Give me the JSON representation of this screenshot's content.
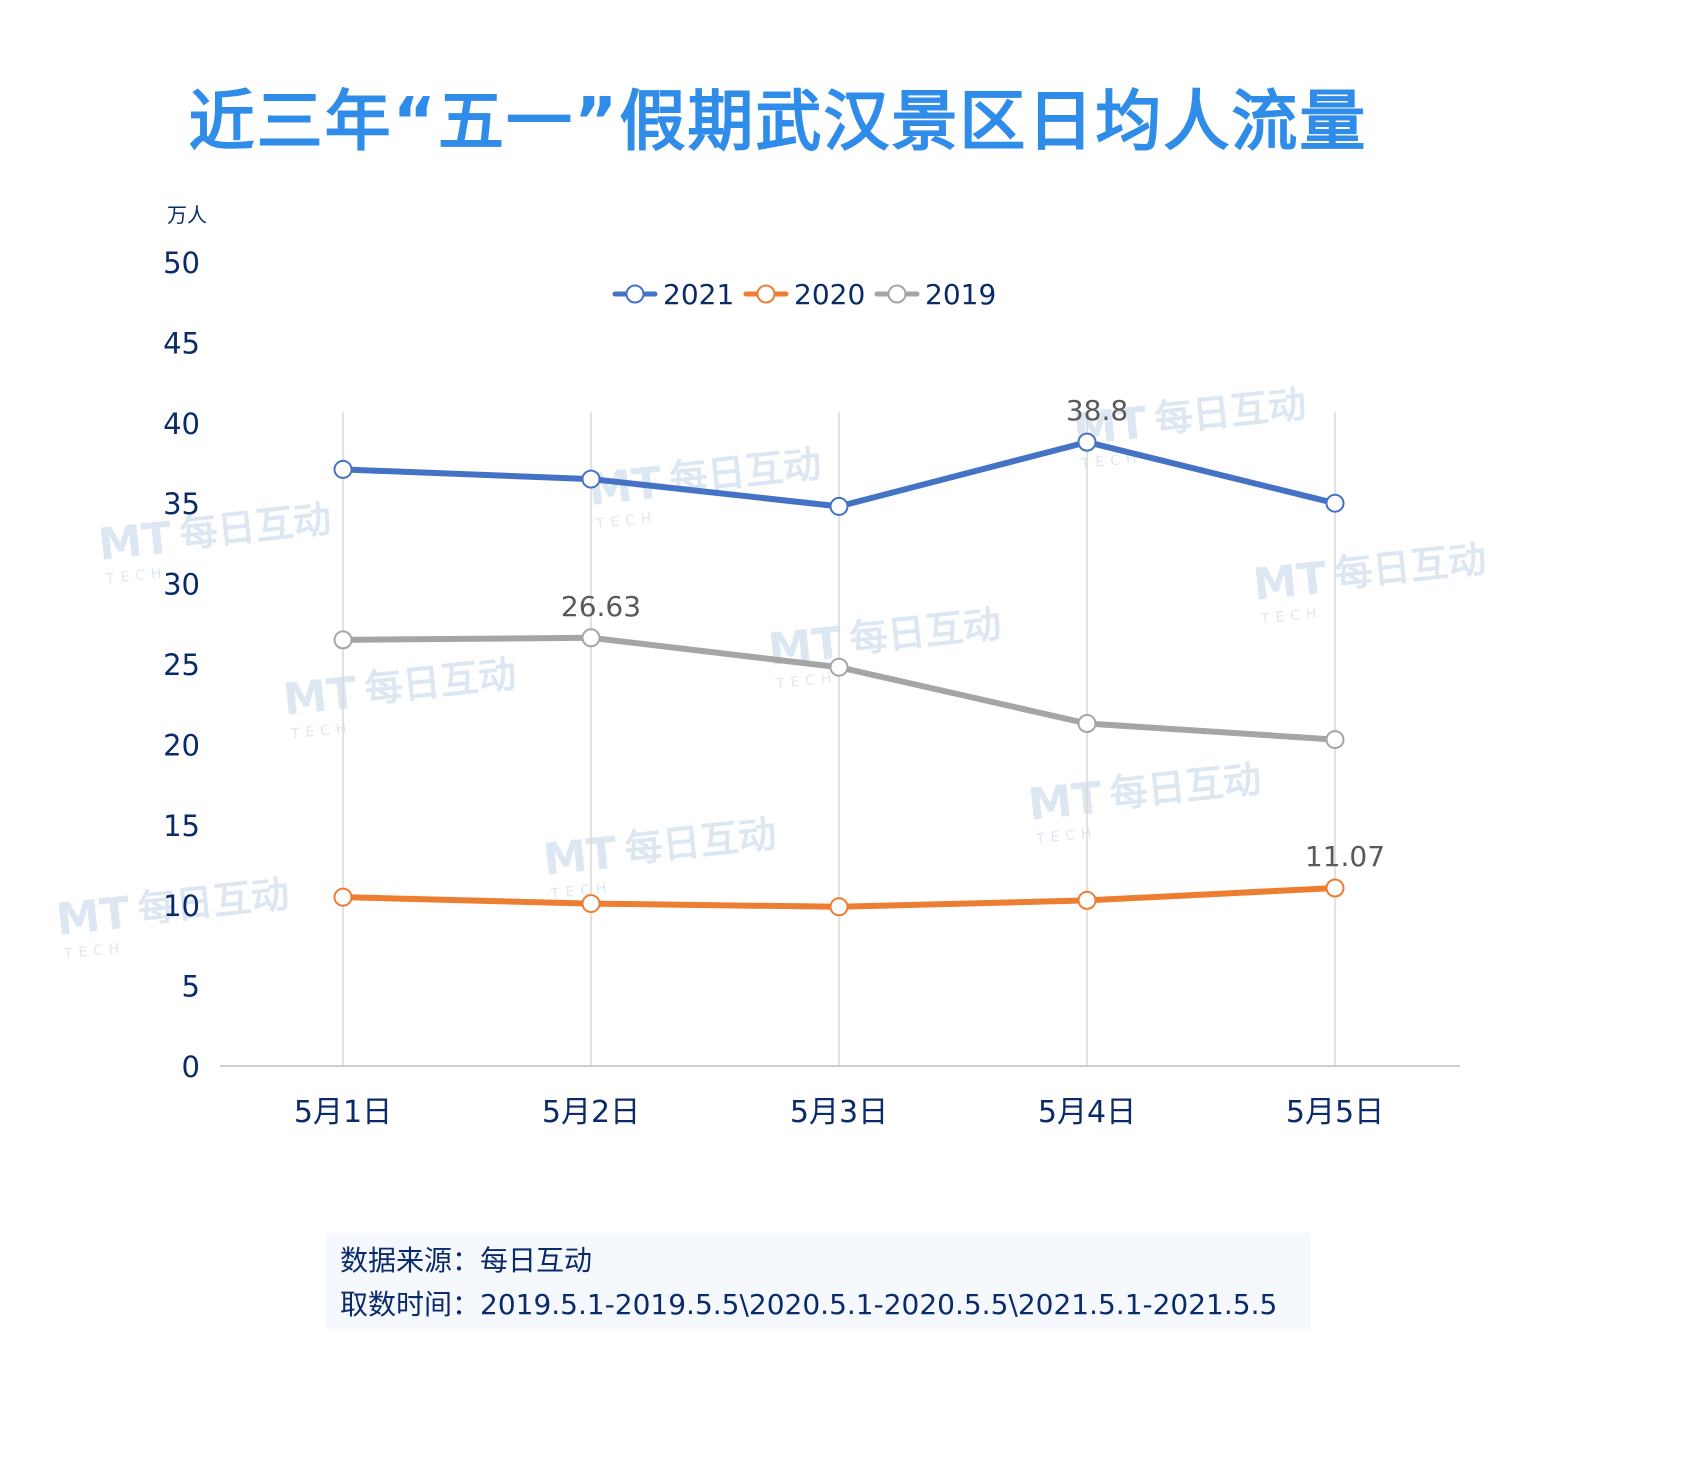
{
  "chart_data": {
    "type": "line",
    "title": "近三年“五一”假期武汉景区日均人流量",
    "ylabel": "万人",
    "xlabel": "",
    "categories": [
      "5月1日",
      "5月2日",
      "5月3日",
      "5月4日",
      "5月5日"
    ],
    "ylim": [
      0,
      50
    ],
    "yticks": [
      0,
      5,
      10,
      15,
      20,
      25,
      30,
      35,
      40,
      45,
      50
    ],
    "grid": "vertical",
    "legend": "top-center",
    "series": [
      {
        "name": "2021",
        "color": "#4472c4",
        "values": [
          37.1,
          36.5,
          34.8,
          38.8,
          35.0
        ]
      },
      {
        "name": "2020",
        "color": "#ed7d31",
        "values": [
          10.5,
          10.1,
          9.9,
          10.3,
          11.07
        ]
      },
      {
        "name": "2019",
        "color": "#a5a5a5",
        "values": [
          26.5,
          26.63,
          24.8,
          21.3,
          20.3
        ]
      }
    ],
    "data_labels": [
      {
        "series": 0,
        "index": 3,
        "text": "38.8"
      },
      {
        "series": 2,
        "index": 1,
        "text": "26.63"
      },
      {
        "series": 1,
        "index": 4,
        "text": "11.07"
      }
    ]
  },
  "watermark": {
    "brand": "每日互动",
    "sub": "TECH",
    "logo": "MT"
  },
  "footer": {
    "source": "数据来源：每日互动",
    "period": "取数时间：2019.5.1-2019.5.5\\2020.5.1-2020.5.5\\2021.5.1-2021.5.5"
  }
}
